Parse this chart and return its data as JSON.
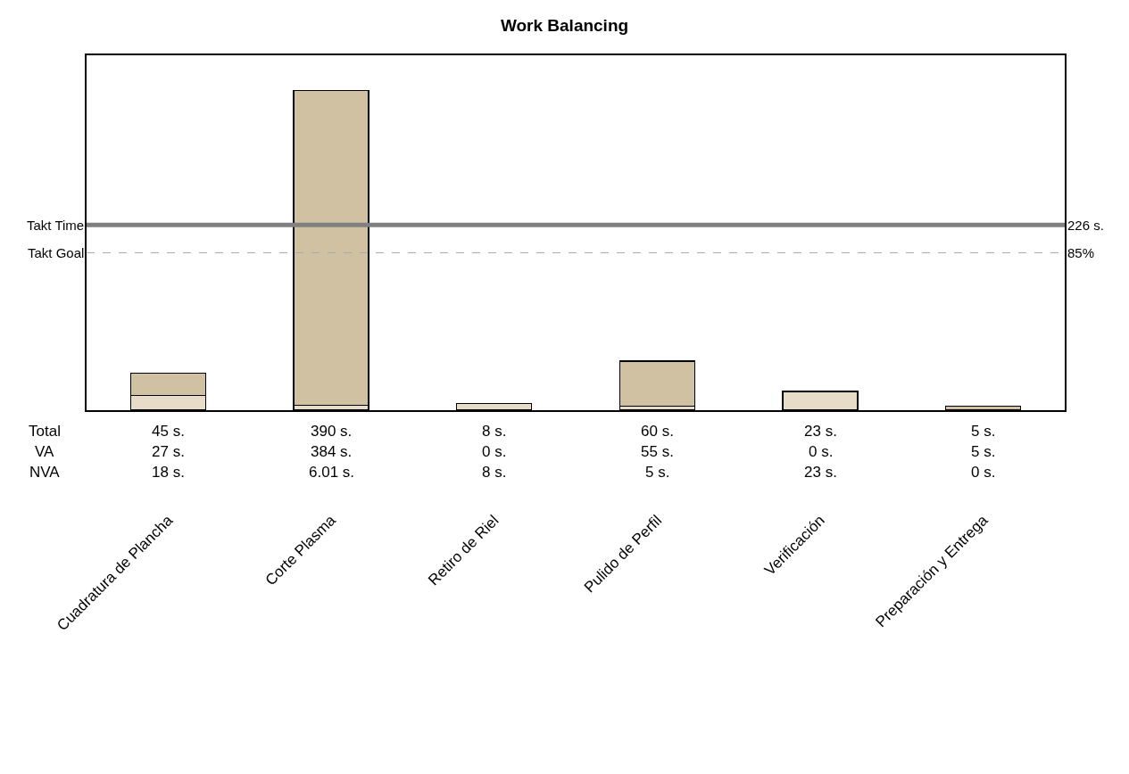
{
  "chart_data": {
    "type": "bar",
    "title": "Work Balancing",
    "stacked": true,
    "legend": false,
    "categories": [
      "Cuadratura de Plancha",
      "Corte Plasma",
      "Retiro de Riel",
      "Pulido de Perfil",
      "Verificación",
      "Preparación y Entrega"
    ],
    "series": [
      {
        "color": "#e6dcc7",
        "values": [
          18,
          6.01,
          8,
          5,
          23,
          0
        ],
        "value_labels": [
          "18 s.",
          "6.01 s.",
          "8 s.",
          "5 s.",
          "23 s.",
          "0 s."
        ]
      },
      {
        "color": "#cfc1a2",
        "values": [
          27,
          384,
          0,
          55,
          0,
          5
        ],
        "value_labels": [
          "27 s.",
          "384 s.",
          "0 s.",
          "55 s.",
          "0 s.",
          "5 s."
        ]
      }
    ],
    "totals": [
      "45 s.",
      "390 s.",
      "8 s.",
      "60 s.",
      "23 s.",
      "5 s."
    ],
    "ylim": [
      0,
      433
    ],
    "ref_lines": [
      {
        "axis": "y",
        "value": 226,
        "label": "Takt Time",
        "color": "#808080",
        "line_style": "solid"
      },
      {
        "axis": "y",
        "value": 192.1,
        "label": "Takt Goal",
        "color": "#a8a8a8",
        "line_style": "dashed"
      }
    ],
    "annotations": [
      "Total",
      "VA",
      "NVA",
      "226 s.",
      "85%"
    ]
  }
}
